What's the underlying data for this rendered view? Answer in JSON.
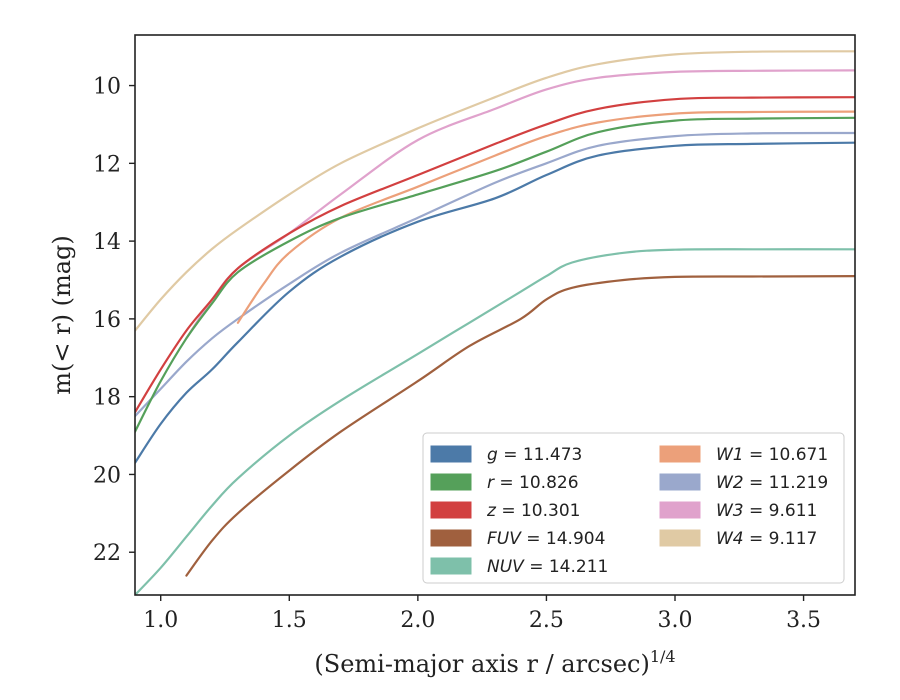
{
  "chart_data": {
    "type": "line",
    "xlabel": "(Semi-major axis r / arcsec)1/4",
    "ylabel": "m(< r) (mag)",
    "xlim": [
      0.9,
      3.7
    ],
    "ylim": [
      23.1,
      8.7
    ],
    "y_inverted": true,
    "grid": false,
    "legend_position": "lower right",
    "x_ticks": [
      1.0,
      1.5,
      2.0,
      2.5,
      3.0,
      3.5
    ],
    "x_tick_labels": [
      "1.0",
      "1.5",
      "2.0",
      "2.5",
      "3.0",
      "3.5"
    ],
    "y_ticks": [
      10,
      12,
      14,
      16,
      18,
      20,
      22
    ],
    "y_tick_labels": [
      "10",
      "12",
      "14",
      "16",
      "18",
      "20",
      "22"
    ],
    "series": [
      {
        "name": "g",
        "label_value": "11.473",
        "color": "#4c7aa8",
        "x": [
          0.9,
          1.0,
          1.1,
          1.2,
          1.3,
          1.5,
          1.7,
          2.0,
          2.3,
          2.5,
          2.7,
          3.0,
          3.3,
          3.7
        ],
        "y": [
          19.7,
          18.7,
          17.9,
          17.3,
          16.6,
          15.3,
          14.4,
          13.5,
          12.9,
          12.3,
          11.8,
          11.55,
          11.5,
          11.47
        ]
      },
      {
        "name": "r",
        "label_value": "10.826",
        "color": "#55a05a",
        "x": [
          0.9,
          1.0,
          1.1,
          1.2,
          1.3,
          1.5,
          1.7,
          2.0,
          2.3,
          2.5,
          2.7,
          3.0,
          3.3,
          3.7
        ],
        "y": [
          18.9,
          17.6,
          16.5,
          15.6,
          14.8,
          14.0,
          13.4,
          12.8,
          12.2,
          11.7,
          11.2,
          10.9,
          10.85,
          10.83
        ]
      },
      {
        "name": "z",
        "label_value": "10.301",
        "color": "#d24040",
        "x": [
          0.9,
          1.0,
          1.1,
          1.2,
          1.3,
          1.5,
          1.7,
          2.0,
          2.3,
          2.5,
          2.7,
          3.0,
          3.3,
          3.7
        ],
        "y": [
          18.4,
          17.3,
          16.3,
          15.5,
          14.7,
          13.8,
          13.1,
          12.3,
          11.5,
          11.0,
          10.6,
          10.35,
          10.31,
          10.3
        ]
      },
      {
        "name": "FUV",
        "label_value": "14.904",
        "color": "#a0603e",
        "x": [
          1.1,
          1.2,
          1.3,
          1.5,
          1.7,
          2.0,
          2.2,
          2.4,
          2.5,
          2.6,
          2.8,
          3.0,
          3.3,
          3.7
        ],
        "y": [
          22.6,
          21.7,
          21.0,
          19.9,
          18.9,
          17.6,
          16.7,
          16.0,
          15.5,
          15.2,
          15.0,
          14.92,
          14.91,
          14.9
        ]
      },
      {
        "name": "NUV",
        "label_value": "14.211",
        "color": "#7ec0aa",
        "x": [
          0.9,
          1.0,
          1.1,
          1.2,
          1.3,
          1.5,
          1.7,
          2.0,
          2.2,
          2.4,
          2.5,
          2.6,
          2.8,
          3.0,
          3.3,
          3.7
        ],
        "y": [
          23.1,
          22.4,
          21.6,
          20.8,
          20.1,
          19.0,
          18.1,
          16.9,
          16.1,
          15.3,
          14.9,
          14.55,
          14.3,
          14.22,
          14.21,
          14.21
        ]
      },
      {
        "name": "W1",
        "label_value": "10.671",
        "color": "#eca07a",
        "x": [
          1.3,
          1.4,
          1.5,
          1.7,
          2.0,
          2.3,
          2.5,
          2.7,
          3.0,
          3.3,
          3.7
        ],
        "y": [
          16.1,
          15.1,
          14.3,
          13.4,
          12.6,
          11.8,
          11.3,
          10.95,
          10.72,
          10.68,
          10.67
        ]
      },
      {
        "name": "W2",
        "label_value": "11.219",
        "color": "#9aa8cc",
        "x": [
          0.9,
          1.0,
          1.1,
          1.2,
          1.3,
          1.5,
          1.7,
          2.0,
          2.3,
          2.5,
          2.7,
          3.0,
          3.3,
          3.7
        ],
        "y": [
          18.5,
          17.8,
          17.1,
          16.5,
          16.0,
          15.1,
          14.3,
          13.4,
          12.5,
          12.0,
          11.55,
          11.3,
          11.23,
          11.22
        ]
      },
      {
        "name": "W3",
        "label_value": "9.611",
        "color": "#e0a2cc",
        "x": [
          1.1,
          1.2,
          1.3,
          1.5,
          1.7,
          2.0,
          2.3,
          2.5,
          2.7,
          3.0,
          3.3,
          3.7
        ],
        "y": [
          16.5,
          15.5,
          14.7,
          13.8,
          12.8,
          11.4,
          10.6,
          10.1,
          9.8,
          9.65,
          9.62,
          9.61
        ]
      },
      {
        "name": "W4",
        "label_value": "9.117",
        "color": "#e0caa4",
        "x": [
          0.9,
          1.0,
          1.1,
          1.2,
          1.3,
          1.5,
          1.7,
          2.0,
          2.3,
          2.5,
          2.7,
          3.0,
          3.3,
          3.7
        ],
        "y": [
          16.3,
          15.5,
          14.8,
          14.2,
          13.7,
          12.8,
          12.0,
          11.1,
          10.3,
          9.8,
          9.45,
          9.2,
          9.13,
          9.12
        ]
      }
    ],
    "legend_columns": [
      [
        "g",
        "r",
        "z",
        "FUV",
        "NUV"
      ],
      [
        "W1",
        "W2",
        "W3",
        "W4"
      ]
    ]
  }
}
